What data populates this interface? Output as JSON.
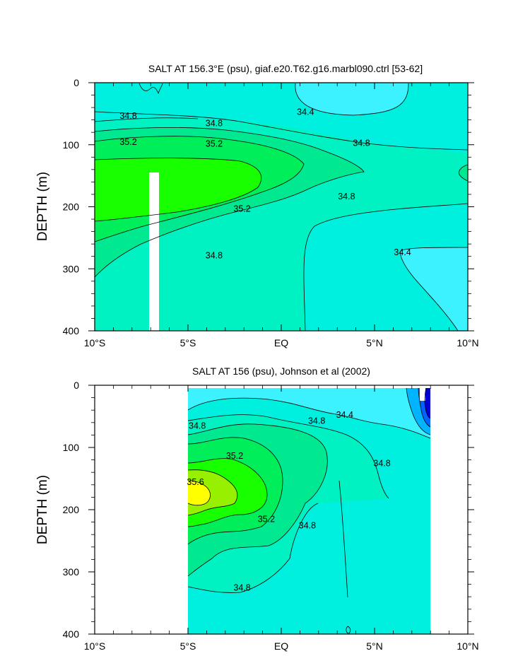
{
  "colors": {
    "c34_0": "#00ffff",
    "c34_2": "#00ffff",
    "c34_4": "#3df2ff",
    "c34_6": "#00f0e0",
    "c34_8": "#00f2c2",
    "c35_0": "#00e890",
    "c35_2": "#00ee5a",
    "c35_4": "#18ff00",
    "c35_6": "#96f000",
    "c35_8": "#ffff00",
    "low1": "#00b4ff",
    "low2": "#0064ff",
    "low3": "#0000d0"
  },
  "chart_data": [
    {
      "type": "heatmap",
      "subtype": "filled-contour",
      "title": "SALT AT 156.3°E (psu), giaf.e20.T62.g16.marbl090.ctrl [53-62]",
      "xlabel": "",
      "ylabel": "DEPTH (m)",
      "xlim": [
        -10,
        10
      ],
      "ylim": [
        400,
        0
      ],
      "x_ticks": [
        -10,
        -5,
        0,
        5,
        10
      ],
      "x_tick_labels": [
        "10°S",
        "5°S",
        "EQ",
        "5°N",
        "10°N"
      ],
      "y_ticks": [
        0,
        100,
        200,
        300,
        400
      ],
      "y_tick_labels": [
        "0",
        "100",
        "200",
        "300",
        "400"
      ],
      "contour_labels": [
        {
          "text": "34.8",
          "x": -8.2,
          "y": 58
        },
        {
          "text": "34.8",
          "x": -3.6,
          "y": 70
        },
        {
          "text": "34.4",
          "x": 1.3,
          "y": 52
        },
        {
          "text": "34.8",
          "x": 4.3,
          "y": 102
        },
        {
          "text": "35.2",
          "x": -8.2,
          "y": 100
        },
        {
          "text": "35.2",
          "x": -3.6,
          "y": 103
        },
        {
          "text": "35.2",
          "x": -2.1,
          "y": 208
        },
        {
          "text": "34.8",
          "x": 3.5,
          "y": 188
        },
        {
          "text": "34.8",
          "x": -3.6,
          "y": 283
        },
        {
          "text": "34.4",
          "x": 6.5,
          "y": 278
        }
      ]
    },
    {
      "type": "heatmap",
      "subtype": "filled-contour",
      "title": "SALT AT 156 (psu), Johnson et al (2002)",
      "xlabel": "",
      "ylabel": "DEPTH (m)",
      "xlim": [
        -10,
        10
      ],
      "ylim": [
        400,
        0
      ],
      "x_ticks": [
        -10,
        -5,
        0,
        5,
        10
      ],
      "x_tick_labels": [
        "10°S",
        "5°S",
        "EQ",
        "5°N",
        "10°N"
      ],
      "y_ticks": [
        0,
        100,
        200,
        300,
        400
      ],
      "y_tick_labels": [
        "0",
        "100",
        "200",
        "300",
        "400"
      ],
      "data_extent_x": [
        -5,
        8
      ],
      "contour_labels": [
        {
          "text": "34.8",
          "x": -4.5,
          "y": 70
        },
        {
          "text": "34.8",
          "x": 1.9,
          "y": 62
        },
        {
          "text": "34.4",
          "x": 3.4,
          "y": 52
        },
        {
          "text": "34.8",
          "x": 5.4,
          "y": 130
        },
        {
          "text": "35.2",
          "x": -2.5,
          "y": 118
        },
        {
          "text": "35.6",
          "x": -4.6,
          "y": 160
        },
        {
          "text": "35.2",
          "x": -0.8,
          "y": 220
        },
        {
          "text": "34.8",
          "x": 1.4,
          "y": 230
        },
        {
          "text": "34.8",
          "x": -2.1,
          "y": 330
        }
      ]
    }
  ]
}
